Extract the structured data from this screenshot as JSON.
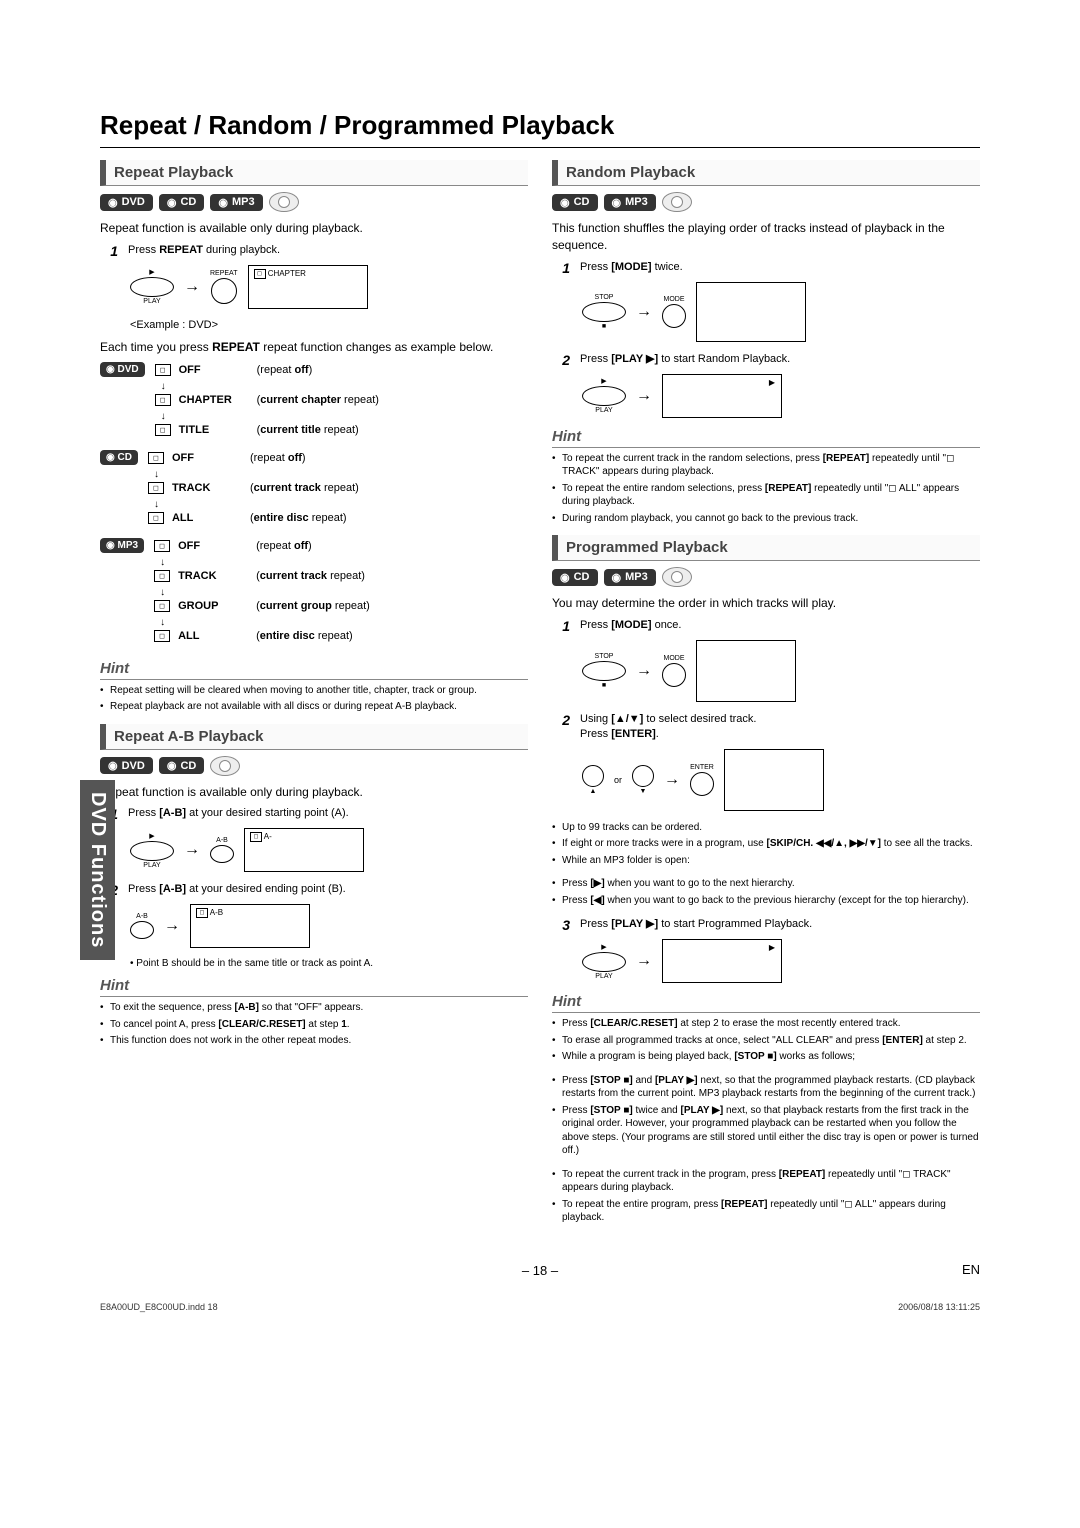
{
  "pageTitle": "Repeat / Random / Programmed Playback",
  "sideTab": "DVD Functions",
  "pageNumber": "– 18 –",
  "pageLang": "EN",
  "docMeta": {
    "file": "E8A00UD_E8C00UD.indd   18",
    "date": "2006/08/18   13:11:25"
  },
  "badges": {
    "dvd": "DVD",
    "cd": "CD",
    "mp3": "MP3"
  },
  "repeat": {
    "head": "Repeat Playback",
    "intro": "Repeat function is available only during playback.",
    "step1": "Press <b>REPEAT</b> during playbck.",
    "btnPlay": "PLAY",
    "btnRepeat": "REPEAT",
    "screenLabel": "CHAPTER",
    "example": "<Example : DVD>",
    "cycle": "Each time you press <b>REPEAT</b> repeat function changes as example below.",
    "groups": [
      {
        "media": "DVD",
        "modes": [
          {
            "label": "OFF",
            "desc": "(repeat <b>off</b>)"
          },
          {
            "label": "CHAPTER",
            "desc": "(<b>current chapter</b> repeat)"
          },
          {
            "label": "TITLE",
            "desc": "(<b>current title</b> repeat)"
          }
        ]
      },
      {
        "media": "CD",
        "modes": [
          {
            "label": "OFF",
            "desc": "(repeat <b>off</b>)"
          },
          {
            "label": "TRACK",
            "desc": "(<b>current track</b> repeat)"
          },
          {
            "label": "ALL",
            "desc": "(<b>entire disc</b> repeat)"
          }
        ]
      },
      {
        "media": "MP3",
        "modes": [
          {
            "label": "OFF",
            "desc": "(repeat <b>off</b>)"
          },
          {
            "label": "TRACK",
            "desc": "(<b>current track</b> repeat)"
          },
          {
            "label": "GROUP",
            "desc": "(<b>current group</b> repeat)"
          },
          {
            "label": "ALL",
            "desc": "(<b>entire disc</b> repeat)"
          }
        ]
      }
    ],
    "hint": [
      "Repeat setting will be cleared when moving to another title, chapter, track or group.",
      "Repeat playback are not available with all discs or during repeat A-B playback."
    ]
  },
  "repeatAB": {
    "head": "Repeat A-B Playback",
    "intro": "Repeat function is available only during playback.",
    "step1": "Press <b>[A-B]</b> at your desired starting point (A).",
    "step2": "Press <b>[A-B]</b> at your desired ending point (B).",
    "btnAB": "A-B",
    "screen1": "A-",
    "screen2": "A-B",
    "note": "Point B should be in the same title or track as point A.",
    "hint": [
      "To exit the sequence, press <b>[A-B]</b> so that \"OFF\" appears.",
      "To cancel point A, press <b>[CLEAR/C.RESET]</b> at step <b>1</b>.",
      "This function does not work in the other repeat modes."
    ]
  },
  "random": {
    "head": "Random Playback",
    "intro": "This function shuffles the playing order of tracks instead of playback in the sequence.",
    "step1": "Press <b>[MODE]</b> twice.",
    "step2": "Press <b>[PLAY ▶]</b> to start Random Playback.",
    "btnStop": "STOP",
    "btnMode": "MODE",
    "btnPlay": "PLAY",
    "hint": [
      "To repeat the current track in the random selections, press <b>[REPEAT]</b> repeatedly until \"◻ TRACK\" appears during playback.",
      "To repeat the entire random selections, press <b>[REPEAT]</b> repeatedly until \"◻ ALL\" appears during playback.",
      "During random playback, you cannot go back to the previous track."
    ]
  },
  "programmed": {
    "head": "Programmed Playback",
    "intro": "You may determine the order in which tracks will play.",
    "step1": "Press <b>[MODE]</b> once.",
    "step2": "Using <b>[▲/▼]</b> to select desired track.<br>Press <b>[ENTER]</b>.",
    "step3": "Press <b>[PLAY ▶]</b> to start Programmed Playback.",
    "btnEnter": "ENTER",
    "bullets": [
      "Up to 99 tracks can be ordered.",
      "If eight or more tracks were in a program, use <b>[SKIP/CH. ◀◀/▲, ▶▶/▼]</b> to see all the tracks.",
      "While an MP3 folder is open:"
    ],
    "dashes": [
      "Press <b>[▶]</b> when you want to go to the next hierarchy.",
      "Press <b>[◀]</b> when you want to go back to the previous hierarchy (except for the top hierarchy)."
    ],
    "hint": [
      "Press <b>[CLEAR/C.RESET]</b> at step 2 to erase the most recently entered track.",
      "To erase all programmed tracks at once, select \"ALL CLEAR\" and press <b>[ENTER]</b> at step 2.",
      "While a program is being played back, <b>[STOP ■]</b> works as follows;"
    ],
    "hintSub": [
      "Press <b>[STOP ■]</b> and <b>[PLAY ▶]</b> next, so that the programmed playback restarts. (CD playback restarts from the current point. MP3 playback restarts from the beginning of the current track.)",
      "Press <b>[STOP ■]</b> twice and <b>[PLAY ▶]</b> next, so that playback restarts from the first track in the original order. However, your programmed playback can be restarted when you follow the above steps. (Your programs are still stored until either the disc tray is open or power is turned off.)"
    ],
    "hintTail": [
      "To repeat the current track in the program, press <b>[REPEAT]</b> repeatedly until \"◻ TRACK\" appears during playback.",
      "To repeat the entire program, press <b>[REPEAT]</b> repeatedly until \"◻ ALL\" appears during playback."
    ]
  },
  "hintLabel": "Hint"
}
